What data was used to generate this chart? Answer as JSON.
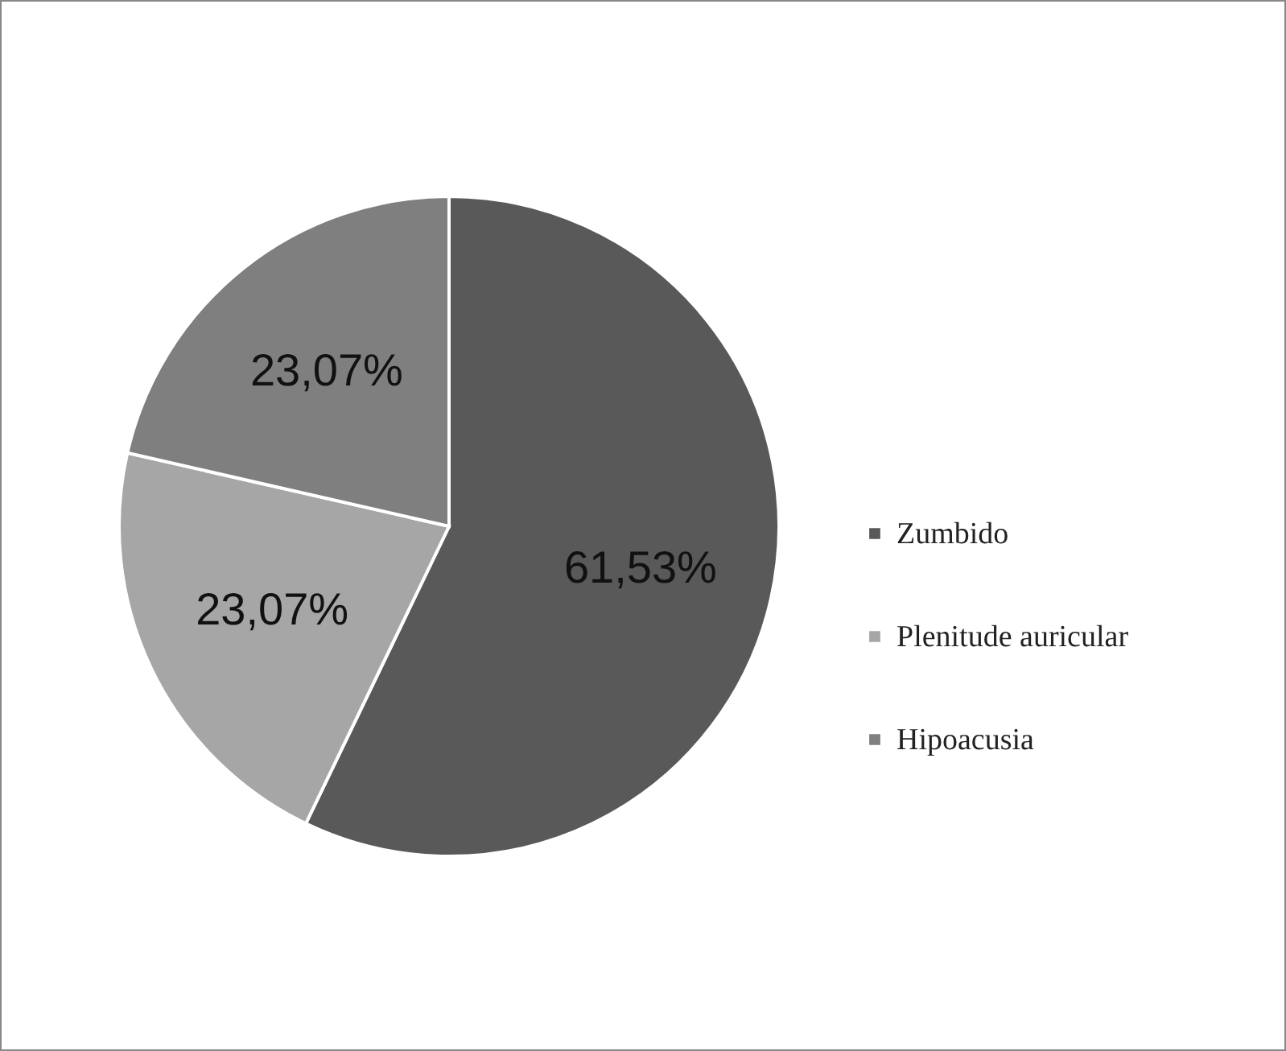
{
  "chart_data": {
    "type": "pie",
    "categories": [
      "Zumbido",
      "Plenitude auricular",
      "Hipoacusia"
    ],
    "values": [
      61.53,
      23.07,
      23.07
    ],
    "value_labels": [
      "61,53%",
      "23,07%",
      "23,07%"
    ],
    "colors": [
      "#595959",
      "#a6a6a6",
      "#7f7f7f"
    ],
    "legend": "right"
  }
}
